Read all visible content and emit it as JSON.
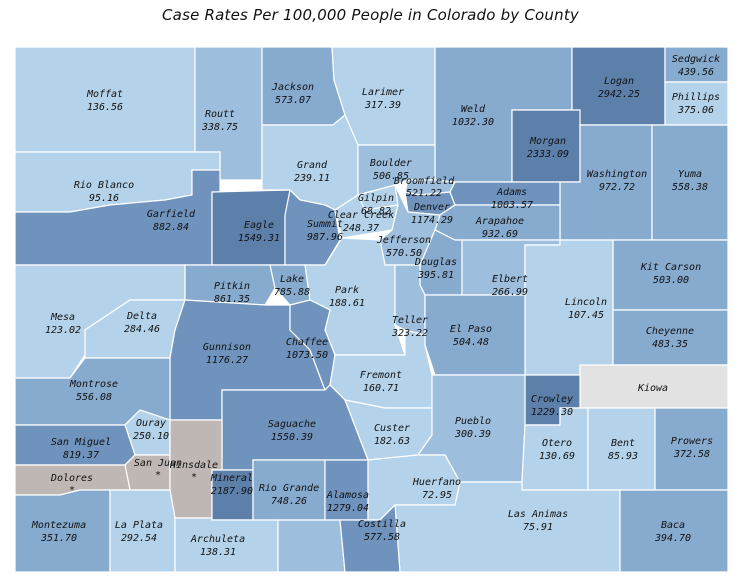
{
  "title": "Case Rates Per 100,000 People in Colorado by County",
  "colors": {
    "very_light": "#b4d3ea",
    "light": "#9dbfdd",
    "medium": "#87aacf",
    "dark": "#6f93bd",
    "darkest": "#5d80ab",
    "no_data": "#bfb7b3",
    "kiowa": "#e2e2e2"
  },
  "counties": [
    {
      "name": "Moffat",
      "value": "136.56"
    },
    {
      "name": "Routt",
      "value": "338.75"
    },
    {
      "name": "Jackson",
      "value": "573.07"
    },
    {
      "name": "Larimer",
      "value": "317.39"
    },
    {
      "name": "Weld",
      "value": "1032.30"
    },
    {
      "name": "Logan",
      "value": "2942.25"
    },
    {
      "name": "Sedgwick",
      "value": "439.56"
    },
    {
      "name": "Phillips",
      "value": "375.06"
    },
    {
      "name": "Rio Blanco",
      "value": "95.16"
    },
    {
      "name": "Grand",
      "value": "239.11"
    },
    {
      "name": "Boulder",
      "value": "506.85"
    },
    {
      "name": "Broomfield",
      "value": "521.22"
    },
    {
      "name": "Morgan",
      "value": "2333.09"
    },
    {
      "name": "Washington",
      "value": "972.72"
    },
    {
      "name": "Yuma",
      "value": "558.38"
    },
    {
      "name": "Garfield",
      "value": "882.84"
    },
    {
      "name": "Eagle",
      "value": "1549.31"
    },
    {
      "name": "Summit",
      "value": "987.96"
    },
    {
      "name": "Gilpin",
      "value": "68.82"
    },
    {
      "name": "Clear Creek",
      "value": "248.37"
    },
    {
      "name": "Denver",
      "value": "1174.29"
    },
    {
      "name": "Adams",
      "value": "1003.57"
    },
    {
      "name": "Arapahoe",
      "value": "932.69"
    },
    {
      "name": "Jefferson",
      "value": "570.50"
    },
    {
      "name": "Douglas",
      "value": "395.81"
    },
    {
      "name": "Elbert",
      "value": "266.99"
    },
    {
      "name": "Kit Carson",
      "value": "503.00"
    },
    {
      "name": "Mesa",
      "value": "123.02"
    },
    {
      "name": "Delta",
      "value": "284.46"
    },
    {
      "name": "Pitkin",
      "value": "861.35"
    },
    {
      "name": "Lake",
      "value": "785.88"
    },
    {
      "name": "Park",
      "value": "188.61"
    },
    {
      "name": "Teller",
      "value": "323.22"
    },
    {
      "name": "El Paso",
      "value": "504.48"
    },
    {
      "name": "Lincoln",
      "value": "107.45"
    },
    {
      "name": "Cheyenne",
      "value": "483.35"
    },
    {
      "name": "Gunnison",
      "value": "1176.27"
    },
    {
      "name": "Chaffee",
      "value": "1073.50"
    },
    {
      "name": "Fremont",
      "value": "160.71"
    },
    {
      "name": "Montrose",
      "value": "556.08"
    },
    {
      "name": "Kiowa",
      "value": ""
    },
    {
      "name": "Crowley",
      "value": "1229.30"
    },
    {
      "name": "Ouray",
      "value": "250.10"
    },
    {
      "name": "Saguache",
      "value": "1550.39"
    },
    {
      "name": "Custer",
      "value": "182.63"
    },
    {
      "name": "Pueblo",
      "value": "300.39"
    },
    {
      "name": "Otero",
      "value": "130.69"
    },
    {
      "name": "Bent",
      "value": "85.93"
    },
    {
      "name": "Prowers",
      "value": "372.58"
    },
    {
      "name": "San Miguel",
      "value": "819.37"
    },
    {
      "name": "San Juan",
      "value": "*"
    },
    {
      "name": "Hinsdale",
      "value": "*"
    },
    {
      "name": "Dolores",
      "value": "*"
    },
    {
      "name": "Mineral",
      "value": "2187.90"
    },
    {
      "name": "Rio Grande",
      "value": "748.26"
    },
    {
      "name": "Huerfano",
      "value": "72.95"
    },
    {
      "name": "Alamosa",
      "value": "1279.04"
    },
    {
      "name": "Las Animas",
      "value": "75.91"
    },
    {
      "name": "Montezuma",
      "value": "351.70"
    },
    {
      "name": "La Plata",
      "value": "292.54"
    },
    {
      "name": "Archuleta",
      "value": "138.31"
    },
    {
      "name": "Costilla",
      "value": "577.58"
    },
    {
      "name": "Baca",
      "value": "394.70"
    }
  ]
}
